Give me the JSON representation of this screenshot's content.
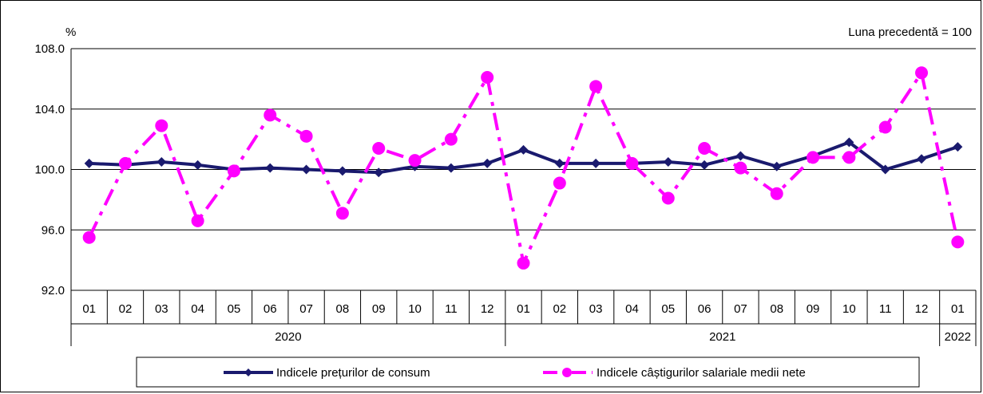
{
  "chart_data": {
    "type": "line",
    "y_unit_label": "%",
    "note": "Luna precedentă = 100",
    "ylim": [
      92.0,
      108.0
    ],
    "yticks": [
      "92.0",
      "96.0",
      "100.0",
      "104.0",
      "108.0"
    ],
    "ytick_values": [
      92,
      96,
      100,
      104,
      108
    ],
    "grid": true,
    "legend_position": "bottom",
    "categories": [
      "01",
      "02",
      "03",
      "04",
      "05",
      "06",
      "07",
      "08",
      "09",
      "10",
      "11",
      "12",
      "01",
      "02",
      "03",
      "04",
      "05",
      "06",
      "07",
      "08",
      "09",
      "10",
      "11",
      "12",
      "01"
    ],
    "year_groups": [
      {
        "label": "2020",
        "count": 12
      },
      {
        "label": "2021",
        "count": 12
      },
      {
        "label": "2022",
        "count": 1
      }
    ],
    "series": [
      {
        "name": "Indicele prețurilor de consum",
        "color": "#1a1a6e",
        "marker": "diamond",
        "line_style": "solid",
        "values": [
          100.4,
          100.3,
          100.5,
          100.3,
          100.0,
          100.1,
          100.0,
          99.9,
          99.8,
          100.2,
          100.1,
          100.4,
          101.3,
          100.4,
          100.4,
          100.4,
          100.5,
          100.3,
          100.9,
          100.2,
          100.9,
          101.8,
          100.0,
          100.7,
          101.5
        ]
      },
      {
        "name": "Indicele câștigurilor salariale medii nete",
        "color": "#ff00ff",
        "marker": "circle",
        "line_style": "dash-dot",
        "values": [
          95.5,
          100.4,
          102.9,
          96.6,
          99.9,
          103.6,
          102.2,
          97.1,
          101.4,
          100.6,
          102.0,
          106.1,
          93.8,
          99.1,
          105.5,
          100.4,
          98.1,
          101.4,
          100.1,
          98.4,
          100.8,
          100.8,
          102.8,
          106.4,
          95.2
        ]
      }
    ]
  }
}
